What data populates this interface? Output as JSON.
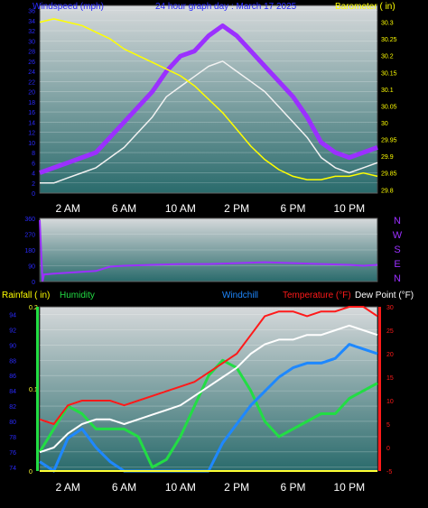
{
  "colors": {
    "background": "#000000",
    "plot_top": "#c9ced1",
    "plot_bottom": "#2f6f6f",
    "windspeed": "#8a2be2",
    "gust": "#9b30ff",
    "windspeed_avg": "#f2f2f2",
    "barometer": "#ffff00",
    "direction": "#9b30ff",
    "temperature": "#ff1a1a",
    "dewpoint": "#ffffff",
    "windchill": "#1e88ff",
    "humidity": "#22dd44",
    "rainfall": "#ffff33",
    "axis_text_blue": "#2a2aff",
    "axis_text_yellow": "#ffff00"
  },
  "chart_data": [
    {
      "type": "line",
      "title": "24 hour graph day : March 17 2025",
      "left_axis_label": "Windspeed (mph)",
      "right_axis_label": "Barometer ( in)",
      "x_ticks": [
        "2 AM",
        "6 AM",
        "10 AM",
        "2 PM",
        "6 PM",
        "10 PM"
      ],
      "x_hours": [
        2,
        6,
        10,
        14,
        18,
        22
      ],
      "x_range": [
        0,
        24
      ],
      "left_ylim": [
        0,
        37
      ],
      "left_ticks": [
        "0",
        "2",
        "4",
        "6",
        "8",
        "10",
        "12",
        "14",
        "16",
        "18",
        "20",
        "22",
        "24",
        "26",
        "28",
        "30",
        "32",
        "34",
        "36"
      ],
      "right_ylim": [
        29.79,
        30.35
      ],
      "right_ticks": [
        "29.8",
        "29.85",
        "29.9",
        "29.95",
        "30",
        "30.05",
        "30.1",
        "30.15",
        "30.2",
        "30.25",
        "30.3"
      ],
      "series": [
        {
          "key": "gust",
          "axis": "left",
          "x": [
            0,
            1,
            2,
            3,
            4,
            5,
            6,
            7,
            8,
            9,
            10,
            11,
            12,
            13,
            14,
            15,
            16,
            17,
            18,
            19,
            20,
            21,
            22,
            23,
            24
          ],
          "values": [
            4,
            5,
            6,
            7,
            8,
            11,
            14,
            17,
            20,
            24,
            27,
            28,
            31,
            33,
            31,
            28,
            25,
            22,
            19,
            15,
            10,
            8,
            7,
            8,
            9
          ]
        },
        {
          "key": "windspeed_avg",
          "axis": "left",
          "x": [
            0,
            1,
            2,
            3,
            4,
            5,
            6,
            7,
            8,
            9,
            10,
            11,
            12,
            13,
            14,
            15,
            16,
            17,
            18,
            19,
            20,
            21,
            22,
            23,
            24
          ],
          "values": [
            2,
            2,
            3,
            4,
            5,
            7,
            9,
            12,
            15,
            19,
            21,
            23,
            25,
            26,
            24,
            22,
            20,
            17,
            14,
            11,
            7,
            5,
            4,
            5,
            6
          ]
        },
        {
          "key": "barometer",
          "axis": "right",
          "x": [
            0,
            1,
            2,
            3,
            4,
            5,
            6,
            7,
            8,
            9,
            10,
            11,
            12,
            13,
            14,
            15,
            16,
            17,
            18,
            19,
            20,
            21,
            22,
            23,
            24
          ],
          "values": [
            30.3,
            30.31,
            30.3,
            30.29,
            30.27,
            30.25,
            30.22,
            30.2,
            30.18,
            30.16,
            30.14,
            30.11,
            30.07,
            30.03,
            29.98,
            29.93,
            29.89,
            29.86,
            29.84,
            29.83,
            29.83,
            29.84,
            29.84,
            29.85,
            29.84
          ]
        }
      ]
    },
    {
      "type": "line",
      "left_ticks": [
        "0",
        "90",
        "180",
        "270",
        "360"
      ],
      "ylim": [
        0,
        360
      ],
      "direction_labels": [
        "N",
        "W",
        "S",
        "E",
        "N"
      ],
      "x_range": [
        0,
        24
      ],
      "series": [
        {
          "key": "direction",
          "x": [
            0,
            0.2,
            0.3,
            1,
            2,
            3,
            4,
            5,
            6,
            8,
            10,
            12,
            14,
            16,
            18,
            20,
            22,
            23,
            24
          ],
          "values": [
            350,
            0,
            40,
            45,
            50,
            55,
            60,
            85,
            90,
            95,
            100,
            100,
            105,
            110,
            105,
            100,
            95,
            90,
            95
          ]
        }
      ]
    },
    {
      "type": "line",
      "left_axis_label": "Rainfall ( in)",
      "humidity_label": "Humidity",
      "windchill_label": "Windchill",
      "temperature_label": "Temperature (°F)",
      "dewpoint_label": "Dew Point (°F)",
      "x_ticks": [
        "2 AM",
        "6 AM",
        "10 AM",
        "2 PM",
        "6 PM",
        "10 PM"
      ],
      "x_hours": [
        2,
        6,
        10,
        14,
        18,
        22
      ],
      "x_range": [
        0,
        24
      ],
      "rain_ticks": [
        "0",
        "0.1",
        "0.2"
      ],
      "rain_ylim": [
        0,
        0.2
      ],
      "humidity_ticks": [
        "74",
        "76",
        "78",
        "80",
        "82",
        "84",
        "86",
        "88",
        "90",
        "92",
        "94"
      ],
      "humidity_ylim": [
        73.5,
        95
      ],
      "temp_ticks": [
        "-5",
        "0",
        "5",
        "10",
        "15",
        "20",
        "25",
        "30"
      ],
      "temp_ylim": [
        -5,
        30
      ],
      "series": [
        {
          "key": "temperature",
          "axis": "temp",
          "x": [
            0,
            1,
            2,
            3,
            4,
            5,
            6,
            7,
            8,
            9,
            10,
            11,
            12,
            13,
            14,
            15,
            16,
            17,
            18,
            19,
            20,
            21,
            22,
            23,
            24
          ],
          "values": [
            6,
            5,
            9,
            10,
            10,
            10,
            9,
            10,
            11,
            12,
            13,
            14,
            16,
            18,
            20,
            24,
            28,
            29,
            29,
            28,
            29,
            29,
            30,
            30,
            28
          ]
        },
        {
          "key": "dewpoint",
          "axis": "temp",
          "x": [
            0,
            1,
            2,
            3,
            4,
            5,
            6,
            7,
            8,
            9,
            10,
            11,
            12,
            13,
            14,
            15,
            16,
            17,
            18,
            19,
            20,
            21,
            22,
            23,
            24
          ],
          "values": [
            -1,
            0,
            3,
            5,
            6,
            6,
            5,
            6,
            7,
            8,
            9,
            11,
            13,
            15,
            17,
            20,
            22,
            23,
            23,
            24,
            24,
            25,
            26,
            25,
            24
          ]
        },
        {
          "key": "windchill",
          "axis": "temp",
          "x": [
            0,
            1,
            2,
            3,
            4,
            5,
            6,
            7,
            8,
            9,
            10,
            11,
            12,
            13,
            14,
            15,
            16,
            17,
            18,
            19,
            20,
            21,
            22,
            23,
            24
          ],
          "values": [
            -3,
            -5,
            2,
            4,
            0,
            -3,
            -5,
            -5,
            -5,
            -5,
            -5,
            -5,
            -5,
            1,
            5,
            9,
            12,
            15,
            17,
            18,
            18,
            19,
            22,
            21,
            20
          ]
        },
        {
          "key": "humidity",
          "axis": "humidity",
          "x": [
            0,
            1,
            2,
            3,
            4,
            5,
            6,
            7,
            8,
            9,
            10,
            11,
            12,
            13,
            14,
            15,
            16,
            17,
            18,
            19,
            20,
            21,
            22,
            23,
            24
          ],
          "values": [
            76,
            79,
            82,
            81,
            79,
            79,
            79,
            78,
            74,
            75,
            78,
            82,
            86,
            88,
            87,
            84,
            80,
            78,
            79,
            80,
            81,
            81,
            83,
            84,
            85
          ]
        },
        {
          "key": "rainfall",
          "axis": "rain",
          "x": [
            0,
            24
          ],
          "values": [
            0,
            0
          ]
        }
      ]
    }
  ]
}
